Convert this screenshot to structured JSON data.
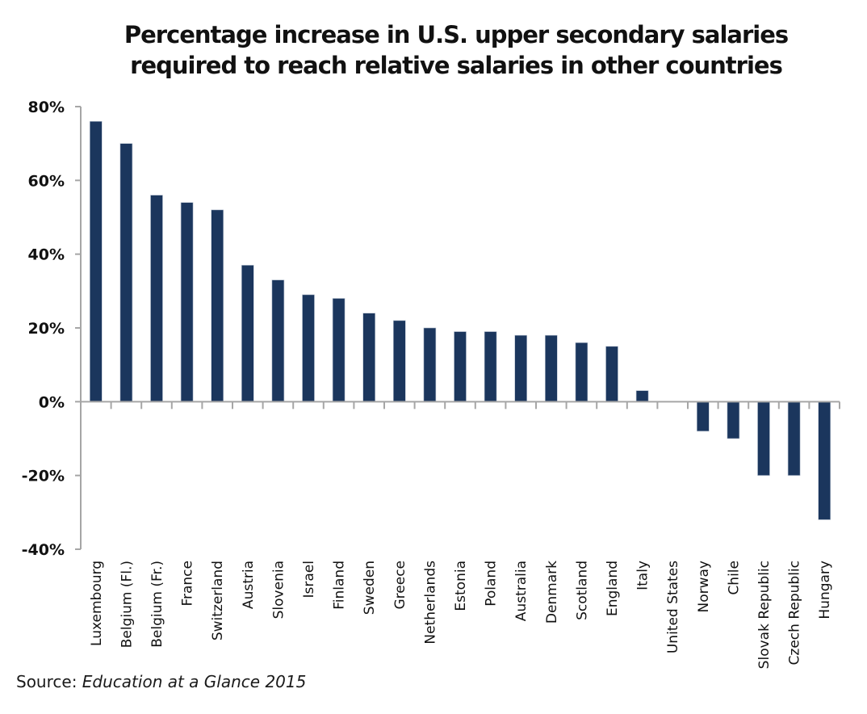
{
  "chart_data": {
    "type": "bar",
    "title": [
      "Percentage increase in U.S. upper secondary salaries",
      "required to reach relative salaries in other countries"
    ],
    "xlabel": "",
    "ylabel": "",
    "ylim": [
      -40,
      80
    ],
    "yticks": [
      80,
      60,
      40,
      20,
      0,
      -20,
      -40
    ],
    "ytick_labels": [
      "80%",
      "60%",
      "40%",
      "20%",
      "0%",
      "-20%",
      "-40%"
    ],
    "grid": false,
    "legend": null,
    "bar_color": "#1b365d",
    "categories": [
      "Luxembourg",
      "Belgium (Fl.)",
      "Belgium (Fr.)",
      "France",
      "Switzerland",
      "Austria",
      "Slovenia",
      "Israel",
      "Finland",
      "Sweden",
      "Greece",
      "Netherlands",
      "Estonia",
      "Poland",
      "Australia",
      "Denmark",
      "Scotland",
      "England",
      "Italy",
      "United States",
      "Norway",
      "Chile",
      "Slovak Republic",
      "Czech Republic",
      "Hungary"
    ],
    "values": [
      76,
      70,
      56,
      54,
      52,
      37,
      33,
      29,
      28,
      24,
      22,
      20,
      19,
      19,
      18,
      18,
      16,
      15,
      3,
      0,
      -8,
      -10,
      -20,
      -20,
      -32
    ]
  },
  "source": {
    "label": "Source: ",
    "title": "Education at a Glance 2015"
  }
}
